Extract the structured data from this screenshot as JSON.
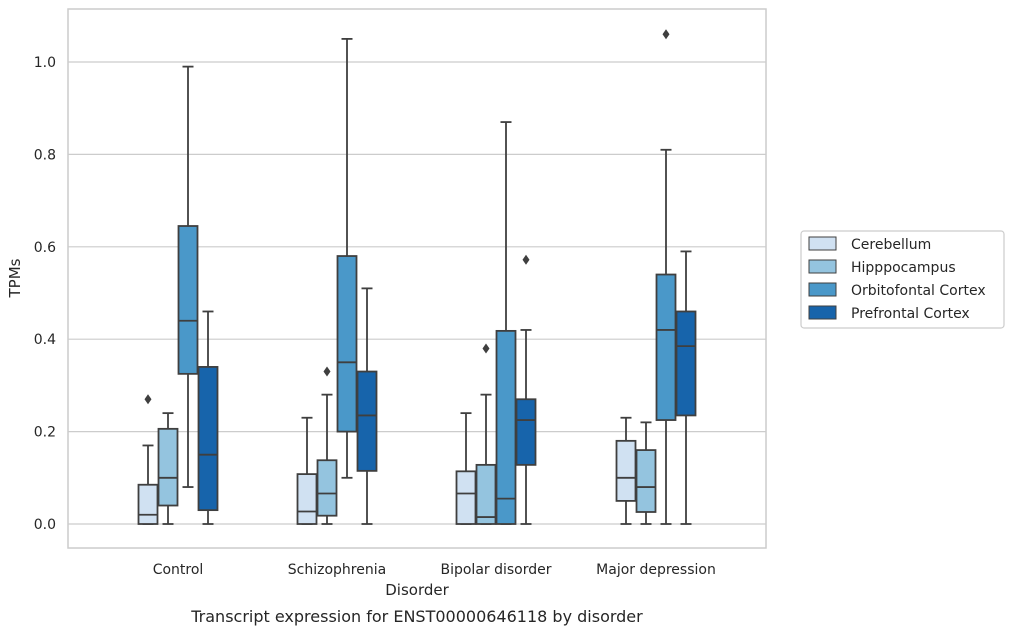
{
  "caption": "Transcript expression for ENST00000646118 by disorder",
  "chart_data": {
    "type": "box",
    "title": "",
    "xlabel": "Disorder",
    "ylabel": "TPMs",
    "ylim": [
      -0.05,
      1.12
    ],
    "yticks": [
      0.0,
      0.2,
      0.4,
      0.6,
      0.8,
      1.0
    ],
    "ytick_labels": [
      "0.0",
      "0.2",
      "0.4",
      "0.6",
      "0.8",
      "1.0"
    ],
    "grid": "horizontal",
    "legend_position": "right",
    "categories": [
      "Control",
      "Schizophrenia",
      "Bipolar disorder",
      "Major depression"
    ],
    "series": [
      {
        "name": "Cerebellum",
        "color": "#d0e1f2",
        "boxes": [
          {
            "whisker_low": 0.0,
            "q1": 0.0,
            "median": 0.02,
            "q3": 0.085,
            "whisker_high": 0.17,
            "outliers": [
              0.27
            ]
          },
          {
            "whisker_low": 0.0,
            "q1": 0.0,
            "median": 0.027,
            "q3": 0.108,
            "whisker_high": 0.23,
            "outliers": []
          },
          {
            "whisker_low": 0.0,
            "q1": 0.0,
            "median": 0.066,
            "q3": 0.114,
            "whisker_high": 0.24,
            "outliers": []
          },
          {
            "whisker_low": 0.0,
            "q1": 0.05,
            "median": 0.1,
            "q3": 0.18,
            "whisker_high": 0.23,
            "outliers": []
          }
        ]
      },
      {
        "name": "Hipppocampus",
        "color": "#94c4df",
        "boxes": [
          {
            "whisker_low": 0.0,
            "q1": 0.04,
            "median": 0.1,
            "q3": 0.206,
            "whisker_high": 0.24,
            "outliers": []
          },
          {
            "whisker_low": 0.0,
            "q1": 0.018,
            "median": 0.066,
            "q3": 0.138,
            "whisker_high": 0.28,
            "outliers": [
              0.33
            ]
          },
          {
            "whisker_low": 0.0,
            "q1": 0.0,
            "median": 0.015,
            "q3": 0.128,
            "whisker_high": 0.28,
            "outliers": [
              0.38
            ]
          },
          {
            "whisker_low": 0.0,
            "q1": 0.026,
            "median": 0.08,
            "q3": 0.16,
            "whisker_high": 0.22,
            "outliers": []
          }
        ]
      },
      {
        "name": "Orbitofontal Cortex",
        "color": "#4a98c9",
        "boxes": [
          {
            "whisker_low": 0.08,
            "q1": 0.325,
            "median": 0.44,
            "q3": 0.645,
            "whisker_high": 0.99,
            "outliers": []
          },
          {
            "whisker_low": 0.1,
            "q1": 0.2,
            "median": 0.35,
            "q3": 0.58,
            "whisker_high": 1.05,
            "outliers": []
          },
          {
            "whisker_low": 0.0,
            "q1": 0.0,
            "median": 0.055,
            "q3": 0.418,
            "whisker_high": 0.87,
            "outliers": []
          },
          {
            "whisker_low": 0.0,
            "q1": 0.225,
            "median": 0.42,
            "q3": 0.54,
            "whisker_high": 0.81,
            "outliers": [
              1.06
            ]
          }
        ]
      },
      {
        "name": "Prefrontal Cortex",
        "color": "#1764ab",
        "boxes": [
          {
            "whisker_low": 0.0,
            "q1": 0.03,
            "median": 0.15,
            "q3": 0.34,
            "whisker_high": 0.46,
            "outliers": []
          },
          {
            "whisker_low": 0.0,
            "q1": 0.115,
            "median": 0.235,
            "q3": 0.33,
            "whisker_high": 0.51,
            "outliers": []
          },
          {
            "whisker_low": 0.0,
            "q1": 0.128,
            "median": 0.225,
            "q3": 0.27,
            "whisker_high": 0.42,
            "outliers": [
              0.572
            ]
          },
          {
            "whisker_low": 0.0,
            "q1": 0.235,
            "median": 0.385,
            "q3": 0.46,
            "whisker_high": 0.59,
            "outliers": []
          }
        ]
      }
    ]
  }
}
